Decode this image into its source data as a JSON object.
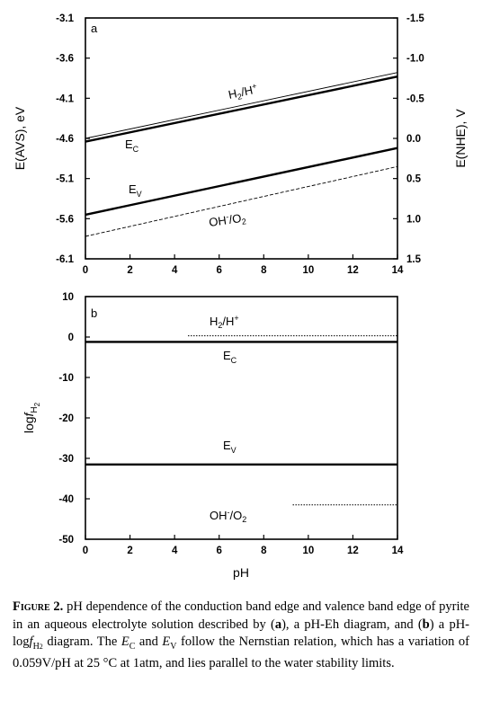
{
  "chart_data": [
    {
      "panel": "a",
      "type": "line",
      "xlabel": "",
      "ylabel_left": "E(AVS), eV",
      "ylabel_right": "E(NHE), V",
      "xlim": [
        0,
        14
      ],
      "ylim_left": [
        -6.1,
        -3.1
      ],
      "ylim_right": [
        1.5,
        -1.5
      ],
      "xticks": [
        "0",
        "2",
        "4",
        "6",
        "8",
        "10",
        "12",
        "14"
      ],
      "yticks_left": [
        "-3.1",
        "-3.6",
        "-4.1",
        "-4.6",
        "-5.1",
        "-5.6",
        "-6.1"
      ],
      "yticks_right": [
        "-1.5",
        "-1.0",
        "-0.5",
        "0.0",
        "0.5",
        "1.0",
        "1.5"
      ],
      "series": [
        {
          "name": "Ec",
          "style": "bold",
          "x": [
            0,
            14
          ],
          "y": [
            -4.64,
            -3.83
          ]
        },
        {
          "name": "Ev",
          "style": "bold",
          "x": [
            0,
            14
          ],
          "y": [
            -5.55,
            -4.72
          ]
        },
        {
          "name": "H2/H+",
          "style": "thin",
          "x": [
            0,
            14
          ],
          "y": [
            -4.6,
            -3.78
          ]
        },
        {
          "name": "OH-/O2",
          "style": "dashed",
          "x": [
            0,
            14
          ],
          "y": [
            -5.82,
            -4.95
          ]
        }
      ],
      "labels": {
        "panel": "a",
        "h2": "H",
        "h2_sub": "2",
        "h2_mid": "/H",
        "h2_sup": "+",
        "ec": "E",
        "ec_sub": "C",
        "ev": "E",
        "ev_sub": "V",
        "oh": "OH",
        "oh_sup": "-",
        "oh_mid": "/O",
        "oh_sub": "2"
      }
    },
    {
      "panel": "b",
      "type": "line",
      "xlabel": "pH",
      "ylabel_prefix": "log",
      "ylabel_italic": "f",
      "ylabel_sub": "H",
      "ylabel_subsub": "2",
      "xlim": [
        0,
        14
      ],
      "ylim": [
        -50,
        10
      ],
      "xticks": [
        "0",
        "2",
        "4",
        "6",
        "8",
        "10",
        "12",
        "14"
      ],
      "yticks": [
        "10",
        "0",
        "-10",
        "-20",
        "-30",
        "-40",
        "-50"
      ],
      "series": [
        {
          "name": "Ec",
          "style": "bold",
          "x": [
            0,
            14
          ],
          "y": [
            -1.2,
            -1.2
          ]
        },
        {
          "name": "Ev",
          "style": "bold",
          "x": [
            0,
            14
          ],
          "y": [
            -31.5,
            -31.5
          ]
        },
        {
          "name": "H2/H+",
          "style": "dotted",
          "x": [
            4.6,
            14
          ],
          "y": [
            0.3,
            0.3
          ]
        },
        {
          "name": "OH-/O2",
          "style": "dotted",
          "x": [
            9.3,
            14
          ],
          "y": [
            -41.5,
            -41.5
          ]
        }
      ],
      "labels": {
        "panel": "b",
        "h2": "H",
        "h2_sub": "2",
        "h2_mid": "/H",
        "h2_sup": "+",
        "ec": "E",
        "ec_sub": "C",
        "ev": "E",
        "ev_sub": "V",
        "oh": "OH",
        "oh_sup": "-",
        "oh_mid": "/O",
        "oh_sub": "2"
      }
    }
  ],
  "caption": {
    "figure_label": "Figure 2.",
    "t1": " pH dependence of the conduction band edge and valence band edge of pyrite in an aqueous electrolyte solution described by (",
    "a": "a",
    "t2": "), a pH-Eh diagram, and (",
    "b": "b",
    "t3": ") a pH-log",
    "f": "f",
    "fsub": "H",
    "fsubsub": "2",
    "t4": " diagram. The ",
    "ec": "E",
    "ec_sub": "C",
    "t5": " and ",
    "ev": "E",
    "ev_sub": "V",
    "t6": " follow the Nernstian relation, which has a variation of 0.059V/pH at 25 °C at 1atm, and lies parallel to the water stability limits."
  }
}
